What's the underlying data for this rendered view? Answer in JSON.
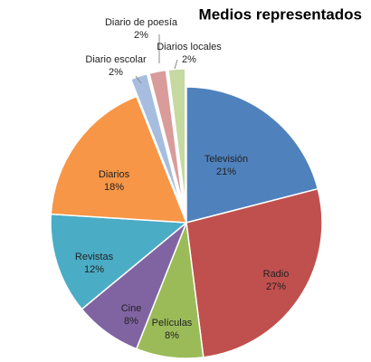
{
  "chart_data": {
    "type": "pie",
    "title": "Medios representados",
    "categories": [
      "Televisión",
      "Radio",
      "Películas",
      "Cine",
      "Revistas",
      "Diarios",
      "Diario escolar",
      "Diario de poesía",
      "Diarios locales"
    ],
    "values": [
      21,
      27,
      8,
      8,
      12,
      18,
      2,
      2,
      2
    ],
    "value_labels": [
      "21%",
      "27%",
      "8%",
      "8%",
      "12%",
      "18%",
      "2%",
      "2%",
      "2%"
    ],
    "colors": [
      "#4f81bd",
      "#c0504d",
      "#9bbb59",
      "#8064a2",
      "#4bacc6",
      "#f79646",
      "#a7bde0",
      "#d99c9a",
      "#c5d9a0"
    ],
    "exploded": [
      false,
      false,
      false,
      false,
      false,
      false,
      true,
      true,
      true
    ]
  }
}
